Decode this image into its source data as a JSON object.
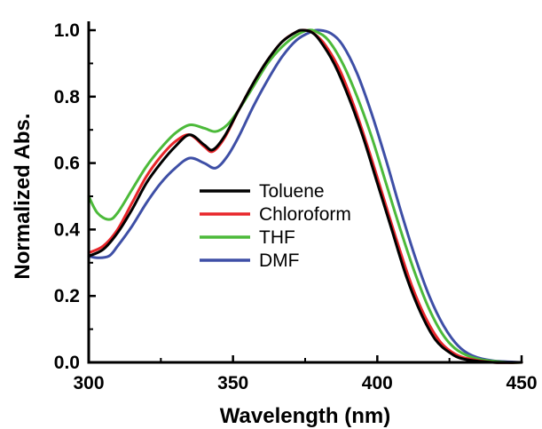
{
  "chart_data": {
    "type": "line",
    "title": "",
    "xlabel": "Wavelength (nm)",
    "ylabel": "Normalized Abs.",
    "xlim": [
      300,
      450
    ],
    "ylim": [
      0.0,
      1.0
    ],
    "x_ticks": [
      300,
      350,
      400,
      450
    ],
    "y_ticks": [
      0.0,
      0.2,
      0.4,
      0.6,
      0.8,
      1.0
    ],
    "x_tick_labels": [
      "300",
      "350",
      "400",
      "450"
    ],
    "y_tick_labels": [
      "0.0",
      "0.2",
      "0.4",
      "0.6",
      "0.8",
      "1.0"
    ],
    "grid": false,
    "legend_position": "center-left",
    "series": [
      {
        "name": "Toluene",
        "color": "#000000",
        "points": [
          [
            300,
            0.32
          ],
          [
            305,
            0.34
          ],
          [
            310,
            0.39
          ],
          [
            315,
            0.46
          ],
          [
            320,
            0.54
          ],
          [
            325,
            0.6
          ],
          [
            330,
            0.65
          ],
          [
            335,
            0.685
          ],
          [
            340,
            0.655
          ],
          [
            343,
            0.64
          ],
          [
            347,
            0.68
          ],
          [
            352,
            0.76
          ],
          [
            357,
            0.84
          ],
          [
            362,
            0.91
          ],
          [
            367,
            0.965
          ],
          [
            372,
            0.995
          ],
          [
            374,
            1.0
          ],
          [
            377,
            0.995
          ],
          [
            380,
            0.97
          ],
          [
            385,
            0.9
          ],
          [
            390,
            0.8
          ],
          [
            395,
            0.68
          ],
          [
            400,
            0.54
          ],
          [
            405,
            0.4
          ],
          [
            410,
            0.26
          ],
          [
            415,
            0.15
          ],
          [
            420,
            0.07
          ],
          [
            425,
            0.03
          ],
          [
            430,
            0.01
          ],
          [
            440,
            0.0
          ],
          [
            450,
            0.0
          ]
        ]
      },
      {
        "name": "Chloroform",
        "color": "#e8262a",
        "points": [
          [
            300,
            0.33
          ],
          [
            305,
            0.35
          ],
          [
            310,
            0.4
          ],
          [
            315,
            0.48
          ],
          [
            320,
            0.56
          ],
          [
            325,
            0.62
          ],
          [
            330,
            0.665
          ],
          [
            335,
            0.685
          ],
          [
            340,
            0.65
          ],
          [
            343,
            0.635
          ],
          [
            347,
            0.675
          ],
          [
            352,
            0.76
          ],
          [
            357,
            0.84
          ],
          [
            362,
            0.91
          ],
          [
            367,
            0.965
          ],
          [
            372,
            0.995
          ],
          [
            375,
            1.0
          ],
          [
            378,
            0.99
          ],
          [
            382,
            0.955
          ],
          [
            387,
            0.88
          ],
          [
            392,
            0.77
          ],
          [
            397,
            0.64
          ],
          [
            402,
            0.5
          ],
          [
            407,
            0.36
          ],
          [
            412,
            0.23
          ],
          [
            417,
            0.13
          ],
          [
            422,
            0.06
          ],
          [
            427,
            0.025
          ],
          [
            432,
            0.01
          ],
          [
            440,
            0.0
          ],
          [
            450,
            0.0
          ]
        ]
      },
      {
        "name": "THF",
        "color": "#4cba3a",
        "points": [
          [
            300,
            0.5
          ],
          [
            303,
            0.45
          ],
          [
            307,
            0.43
          ],
          [
            310,
            0.45
          ],
          [
            315,
            0.52
          ],
          [
            320,
            0.59
          ],
          [
            325,
            0.645
          ],
          [
            330,
            0.69
          ],
          [
            335,
            0.715
          ],
          [
            340,
            0.705
          ],
          [
            344,
            0.695
          ],
          [
            348,
            0.715
          ],
          [
            352,
            0.76
          ],
          [
            357,
            0.83
          ],
          [
            362,
            0.9
          ],
          [
            367,
            0.95
          ],
          [
            372,
            0.985
          ],
          [
            376,
            1.0
          ],
          [
            379,
            0.995
          ],
          [
            383,
            0.97
          ],
          [
            388,
            0.9
          ],
          [
            393,
            0.8
          ],
          [
            398,
            0.68
          ],
          [
            403,
            0.54
          ],
          [
            408,
            0.4
          ],
          [
            413,
            0.27
          ],
          [
            418,
            0.16
          ],
          [
            423,
            0.08
          ],
          [
            428,
            0.035
          ],
          [
            435,
            0.01
          ],
          [
            445,
            0.0
          ],
          [
            450,
            0.0
          ]
        ]
      },
      {
        "name": "DMF",
        "color": "#3e4fa6",
        "points": [
          [
            300,
            0.32
          ],
          [
            303,
            0.315
          ],
          [
            307,
            0.32
          ],
          [
            310,
            0.35
          ],
          [
            315,
            0.41
          ],
          [
            320,
            0.48
          ],
          [
            325,
            0.54
          ],
          [
            330,
            0.585
          ],
          [
            335,
            0.615
          ],
          [
            340,
            0.6
          ],
          [
            344,
            0.585
          ],
          [
            348,
            0.62
          ],
          [
            352,
            0.68
          ],
          [
            357,
            0.77
          ],
          [
            362,
            0.85
          ],
          [
            367,
            0.92
          ],
          [
            372,
            0.97
          ],
          [
            377,
            0.995
          ],
          [
            380,
            1.0
          ],
          [
            384,
            0.99
          ],
          [
            388,
            0.955
          ],
          [
            393,
            0.87
          ],
          [
            398,
            0.75
          ],
          [
            403,
            0.61
          ],
          [
            408,
            0.46
          ],
          [
            413,
            0.32
          ],
          [
            418,
            0.2
          ],
          [
            423,
            0.11
          ],
          [
            428,
            0.05
          ],
          [
            433,
            0.02
          ],
          [
            440,
            0.005
          ],
          [
            450,
            0.0
          ]
        ]
      }
    ]
  }
}
